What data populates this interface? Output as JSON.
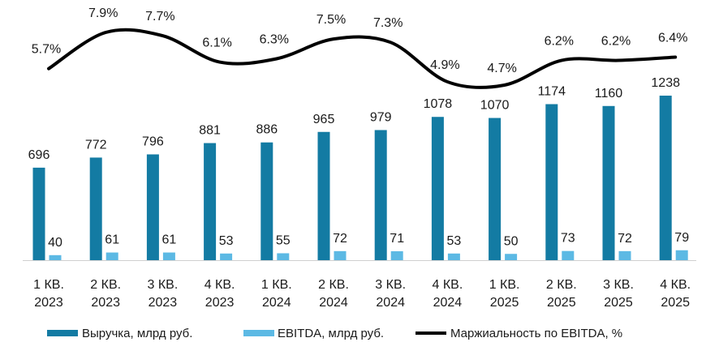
{
  "chart_data": {
    "type": "bar",
    "categories": [
      [
        "1 КВ.",
        "2023"
      ],
      [
        "2 КВ.",
        "2023"
      ],
      [
        "3 КВ.",
        "2023"
      ],
      [
        "4 КВ.",
        "2023"
      ],
      [
        "1 КВ.",
        "2024"
      ],
      [
        "2 КВ.",
        "2024"
      ],
      [
        "3 КВ.",
        "2024"
      ],
      [
        "4 КВ.",
        "2024"
      ],
      [
        "1 КВ.",
        "2025"
      ],
      [
        "2 КВ.",
        "2025"
      ],
      [
        "3 КВ.",
        "2025"
      ],
      [
        "4 КВ.",
        "2025"
      ]
    ],
    "series": [
      {
        "name": "Выручка, млрд руб.",
        "type": "bar",
        "color": "#137ba3",
        "values": [
          696,
          772,
          796,
          881,
          886,
          965,
          979,
          1078,
          1070,
          1174,
          1160,
          1238
        ],
        "labels": [
          "696",
          "772",
          "796",
          "881",
          "886",
          "965",
          "979",
          "1078",
          "1070",
          "1174",
          "1160",
          "1238"
        ]
      },
      {
        "name": "EBITDA, млрд руб.",
        "type": "bar",
        "color": "#5cb9e4",
        "values": [
          40,
          61,
          61,
          53,
          55,
          72,
          71,
          53,
          50,
          73,
          72,
          79
        ],
        "labels": [
          "40",
          "61",
          "61",
          "53",
          "55",
          "72",
          "71",
          "53",
          "50",
          "73",
          "72",
          "79"
        ]
      },
      {
        "name": "Маржиальность по EBITDA, %",
        "type": "line",
        "color": "#000000",
        "values": [
          5.7,
          7.9,
          7.7,
          6.1,
          6.3,
          7.5,
          7.3,
          4.9,
          4.7,
          6.2,
          6.2,
          6.4
        ],
        "labels": [
          "5.7%",
          "7.9%",
          "7.7%",
          "6.1%",
          "6.3%",
          "7.5%",
          "7.3%",
          "4.9%",
          "4.7%",
          "6.2%",
          "6.2%",
          "6.4%"
        ]
      }
    ],
    "legend": "bottom",
    "grid": false
  }
}
